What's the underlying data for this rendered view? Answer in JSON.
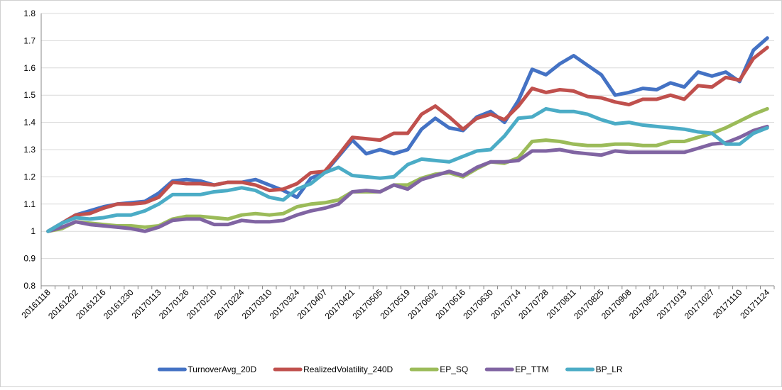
{
  "chart_data": {
    "type": "line",
    "title": "",
    "xlabel": "",
    "ylabel": "",
    "ylim": [
      0.8,
      1.8
    ],
    "yticks": [
      "0.8",
      "0.9",
      "1",
      "1.1",
      "1.2",
      "1.3",
      "1.4",
      "1.5",
      "1.6",
      "1.7",
      "1.8"
    ],
    "grid": "horizontal",
    "legend_position": "bottom",
    "x": [
      "20161118",
      "20161125",
      "20161202",
      "20161209",
      "20161216",
      "20161223",
      "20161230",
      "20170106",
      "20170113",
      "20170120",
      "20170126",
      "20170203",
      "20170210",
      "20170217",
      "20170224",
      "20170303",
      "20170310",
      "20170317",
      "20170324",
      "20170331",
      "20170407",
      "20170414",
      "20170421",
      "20170428",
      "20170505",
      "20170512",
      "20170519",
      "20170526",
      "20170602",
      "20170609",
      "20170616",
      "20170623",
      "20170630",
      "20170707",
      "20170714",
      "20170721",
      "20170728",
      "20170804",
      "20170811",
      "20170818",
      "20170825",
      "20170901",
      "20170908",
      "20170915",
      "20170922",
      "20170929",
      "20171013",
      "20171020",
      "20171027",
      "20171103",
      "20171110",
      "20171117",
      "20171124"
    ],
    "xtick_labels": [
      "20161118",
      "20161202",
      "20161216",
      "20161230",
      "20170113",
      "20170126",
      "20170210",
      "20170224",
      "20170310",
      "20170324",
      "20170407",
      "20170421",
      "20170505",
      "20170519",
      "20170602",
      "20170616",
      "20170630",
      "20170714",
      "20170728",
      "20170811",
      "20170825",
      "20170908",
      "20170922",
      "20171013",
      "20171027",
      "20171110",
      "20171124"
    ],
    "series": [
      {
        "name": "TurnoverAvg_20D",
        "color": "#4472C4",
        "values": [
          1.0,
          1.03,
          1.06,
          1.075,
          1.09,
          1.1,
          1.105,
          1.11,
          1.14,
          1.185,
          1.19,
          1.185,
          1.17,
          1.18,
          1.18,
          1.19,
          1.17,
          1.15,
          1.125,
          1.195,
          1.215,
          1.275,
          1.335,
          1.285,
          1.3,
          1.285,
          1.3,
          1.375,
          1.415,
          1.38,
          1.37,
          1.42,
          1.44,
          1.4,
          1.48,
          1.595,
          1.575,
          1.615,
          1.645,
          1.61,
          1.575,
          1.5,
          1.51,
          1.525,
          1.52,
          1.545,
          1.53,
          1.585,
          1.57,
          1.585,
          1.55,
          1.665,
          1.71
        ]
      },
      {
        "name": "RealizedVolatility_240D",
        "color": "#C0504D",
        "values": [
          1.0,
          1.03,
          1.06,
          1.065,
          1.085,
          1.1,
          1.1,
          1.105,
          1.125,
          1.18,
          1.175,
          1.175,
          1.17,
          1.18,
          1.18,
          1.17,
          1.15,
          1.155,
          1.175,
          1.215,
          1.22,
          1.28,
          1.345,
          1.34,
          1.335,
          1.36,
          1.36,
          1.43,
          1.46,
          1.42,
          1.375,
          1.415,
          1.43,
          1.41,
          1.46,
          1.525,
          1.51,
          1.52,
          1.515,
          1.495,
          1.49,
          1.475,
          1.465,
          1.485,
          1.485,
          1.5,
          1.485,
          1.535,
          1.53,
          1.565,
          1.555,
          1.635,
          1.675
        ]
      },
      {
        "name": "EP_SQ",
        "color": "#9BBB59",
        "values": [
          1.0,
          1.01,
          1.035,
          1.03,
          1.025,
          1.02,
          1.02,
          1.015,
          1.02,
          1.045,
          1.055,
          1.055,
          1.05,
          1.045,
          1.06,
          1.065,
          1.06,
          1.065,
          1.09,
          1.1,
          1.105,
          1.115,
          1.145,
          1.145,
          1.145,
          1.17,
          1.17,
          1.195,
          1.21,
          1.215,
          1.2,
          1.23,
          1.255,
          1.25,
          1.27,
          1.33,
          1.335,
          1.33,
          1.32,
          1.315,
          1.315,
          1.32,
          1.32,
          1.315,
          1.315,
          1.33,
          1.33,
          1.345,
          1.36,
          1.38,
          1.405,
          1.43,
          1.45
        ]
      },
      {
        "name": "EP_TTM",
        "color": "#8064A2",
        "values": [
          1.0,
          1.015,
          1.035,
          1.025,
          1.02,
          1.015,
          1.01,
          1.0,
          1.015,
          1.04,
          1.045,
          1.045,
          1.025,
          1.025,
          1.04,
          1.035,
          1.035,
          1.04,
          1.06,
          1.075,
          1.085,
          1.1,
          1.145,
          1.15,
          1.145,
          1.17,
          1.155,
          1.19,
          1.205,
          1.22,
          1.205,
          1.235,
          1.255,
          1.255,
          1.26,
          1.295,
          1.295,
          1.3,
          1.29,
          1.285,
          1.28,
          1.295,
          1.29,
          1.29,
          1.29,
          1.29,
          1.29,
          1.305,
          1.32,
          1.325,
          1.345,
          1.37,
          1.385
        ]
      },
      {
        "name": "BP_LR",
        "color": "#4BACC6",
        "values": [
          1.0,
          1.03,
          1.05,
          1.045,
          1.05,
          1.06,
          1.06,
          1.075,
          1.1,
          1.135,
          1.135,
          1.135,
          1.145,
          1.15,
          1.16,
          1.15,
          1.125,
          1.115,
          1.155,
          1.175,
          1.215,
          1.235,
          1.205,
          1.2,
          1.195,
          1.2,
          1.245,
          1.265,
          1.26,
          1.255,
          1.275,
          1.295,
          1.3,
          1.35,
          1.415,
          1.42,
          1.45,
          1.44,
          1.44,
          1.43,
          1.41,
          1.395,
          1.4,
          1.39,
          1.385,
          1.38,
          1.375,
          1.365,
          1.36,
          1.32,
          1.32,
          1.36,
          1.38
        ]
      }
    ]
  }
}
